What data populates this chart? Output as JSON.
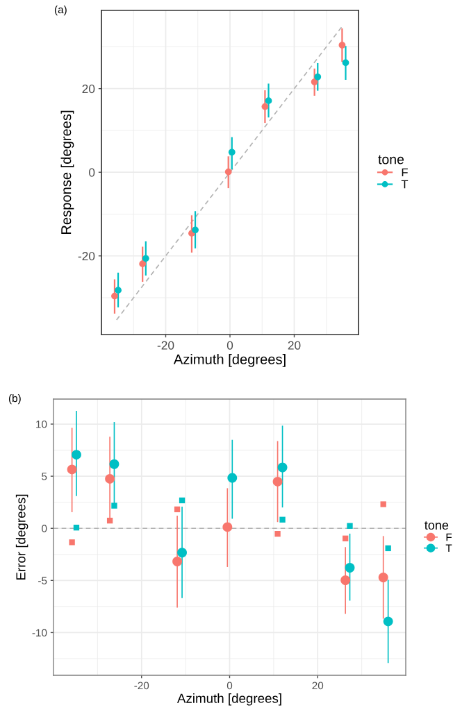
{
  "chart_data": [
    {
      "type": "scatter",
      "xlabel": "Azimuth [degrees]",
      "ylabel": "Response [degrees]",
      "legend_title": "tone",
      "legend": "right",
      "grid": true,
      "marker": "circle",
      "annotations": [
        "(a)"
      ],
      "xlim": [
        -40,
        40
      ],
      "xticks": [
        -20,
        0,
        20
      ],
      "ylim": [
        -38.8,
        38.7
      ],
      "yticks": [
        -20,
        0,
        20
      ],
      "series": [
        {
          "type": "line",
          "line_style": "dashed",
          "marker": "none",
          "color": "#b3b3b3",
          "x": [
            -35.3,
            34.7
          ],
          "values": [
            -35.3,
            34.7
          ]
        },
        {
          "name": "F",
          "color": "#f8766d",
          "x": [
            -35.9,
            -27.2,
            -11.9,
            -0.5,
            10.9,
            26.3,
            34.9
          ],
          "values": [
            -29.6,
            -21.9,
            -14.6,
            0.1,
            15.7,
            21.6,
            30.4
          ],
          "errors": [
            [
              -33.8,
              -25.6
            ],
            [
              -26.2,
              -17.8
            ],
            [
              -19.2,
              -10.3
            ],
            [
              -3.8,
              3.8
            ],
            [
              11.8,
              19.6
            ],
            [
              18.3,
              24.8
            ],
            [
              26.4,
              34.4
            ]
          ]
        },
        {
          "name": "T",
          "color": "#00bfc4",
          "x": [
            -34.8,
            -26.2,
            -10.8,
            0.6,
            12.0,
            27.3,
            36.0
          ],
          "values": [
            -28.2,
            -20.6,
            -13.8,
            4.8,
            17.1,
            22.8,
            26.2
          ],
          "errors": [
            [
              -32.3,
              -24.0
            ],
            [
              -24.7,
              -16.5
            ],
            [
              -18.2,
              -9.3
            ],
            [
              0.7,
              8.4
            ],
            [
              13.1,
              21.2
            ],
            [
              19.5,
              26.1
            ],
            [
              22.1,
              30.2
            ]
          ]
        }
      ]
    },
    {
      "type": "scatter",
      "xlabel": "Azimuth [degrees]",
      "ylabel": "Error [degrees]",
      "legend_title": "tone",
      "legend": "right",
      "grid": true,
      "marker": "circle",
      "annotations": [
        "(b)"
      ],
      "xlim": [
        -40,
        40
      ],
      "xticks": [
        -20,
        0,
        20
      ],
      "ylim": [
        -14.1,
        12.4
      ],
      "yticks": [
        -10,
        -5,
        0,
        5,
        10
      ],
      "ref_lines": [
        {
          "axis": "y",
          "value": 0,
          "color": "#b3b3b3",
          "line_style": "dashed"
        }
      ],
      "series": [
        {
          "name": "F",
          "color": "#f8766d",
          "x": [
            -35.8,
            -27.2,
            -11.9,
            -0.5,
            10.9,
            26.3,
            34.9
          ],
          "values": [
            5.65,
            4.75,
            -3.18,
            0.12,
            4.48,
            -4.98,
            -4.71
          ],
          "errors": [
            [
              1.55,
              9.64
            ],
            [
              0.6,
              8.79
            ],
            [
              -7.61,
              1.22
            ],
            [
              -3.71,
              3.85
            ],
            [
              0.6,
              8.37
            ],
            [
              -8.21,
              -1.8
            ],
            [
              -8.67,
              -0.74
            ]
          ]
        },
        {
          "name": "T",
          "color": "#00bfc4",
          "x": [
            -34.8,
            -26.2,
            -10.8,
            0.6,
            12.0,
            27.3,
            36.0
          ],
          "values": [
            7.06,
            6.16,
            -2.33,
            4.84,
            5.84,
            -3.78,
            -8.93
          ],
          "errors": [
            [
              3.09,
              11.26
            ],
            [
              2.0,
              10.2
            ],
            [
              -6.69,
              2.08
            ],
            [
              0.92,
              8.49
            ],
            [
              2.0,
              9.85
            ],
            [
              -6.94,
              -0.51
            ],
            [
              -12.92,
              -4.94
            ]
          ]
        },
        {
          "marker": "square",
          "color": "#f8766d",
          "x": [
            -35.8,
            -27.2,
            -11.9,
            -0.5,
            10.9,
            26.3,
            34.9
          ],
          "values": [
            -1.34,
            0.74,
            1.82,
            null,
            -0.53,
            -0.97,
            2.31
          ]
        },
        {
          "marker": "square",
          "color": "#00bfc4",
          "x": [
            -34.8,
            -26.2,
            -10.8,
            0.6,
            12.0,
            27.3,
            36.0
          ],
          "values": [
            0.07,
            2.17,
            2.68,
            null,
            0.83,
            0.23,
            -1.91
          ]
        }
      ]
    }
  ]
}
